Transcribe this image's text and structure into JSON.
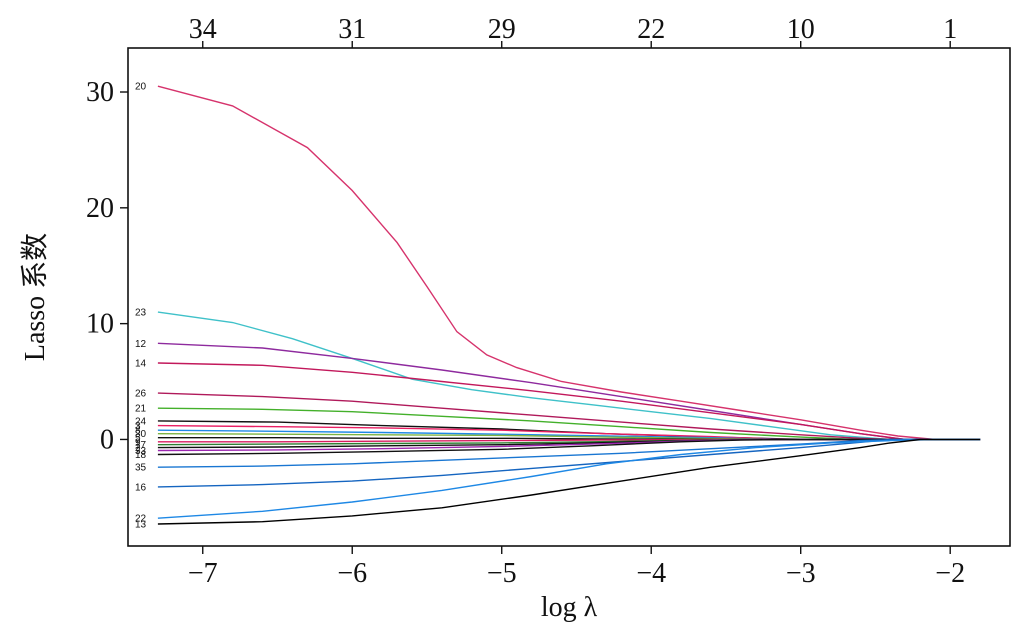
{
  "chart_data": {
    "type": "line",
    "title": "",
    "xlabel": "log λ",
    "ylabel": "Lasso 系数",
    "xlim": [
      -7.5,
      -1.6
    ],
    "ylim": [
      -9.2,
      33.8
    ],
    "x_ticks": [
      -7,
      -6,
      -5,
      -4,
      -3,
      -2
    ],
    "x_tick_labels": [
      "−7",
      "−6",
      "−5",
      "−4",
      "−3",
      "−2"
    ],
    "y_ticks": [
      0,
      10,
      20,
      30
    ],
    "y_tick_labels": [
      "0",
      "10",
      "20",
      "30"
    ],
    "top_axis": {
      "label": "",
      "ticks": [
        -7,
        -6,
        -5,
        -4,
        -3,
        -2
      ],
      "tick_labels": [
        "34",
        "31",
        "29",
        "22",
        "10",
        "1"
      ]
    },
    "grid": false,
    "series": [
      {
        "name": "20",
        "color": "#d6336c",
        "x": [
          -7.3,
          -6.8,
          -6.3,
          -6.0,
          -5.7,
          -5.5,
          -5.3,
          -5.1,
          -4.9,
          -4.6,
          -4.2,
          -3.8,
          -3.4,
          -3.0,
          -2.6,
          -2.35,
          -2.1,
          -1.8
        ],
        "values": [
          30.5,
          28.8,
          25.2,
          21.5,
          17.0,
          13.2,
          9.3,
          7.3,
          6.2,
          5.0,
          4.1,
          3.3,
          2.5,
          1.7,
          0.8,
          0.3,
          0.0,
          0.0
        ]
      },
      {
        "name": "23",
        "color": "#3fc1c9",
        "x": [
          -7.3,
          -6.8,
          -6.4,
          -6.0,
          -5.6,
          -5.2,
          -4.8,
          -4.4,
          -4.0,
          -3.6,
          -3.2,
          -2.8,
          -2.5,
          -2.4,
          -1.8
        ],
        "values": [
          11.0,
          10.1,
          8.7,
          7.0,
          5.2,
          4.3,
          3.6,
          3.0,
          2.4,
          1.8,
          1.1,
          0.4,
          0.1,
          0.0,
          0.0
        ]
      },
      {
        "name": "12",
        "color": "#8e2a9e",
        "x": [
          -7.3,
          -6.6,
          -6.0,
          -5.4,
          -4.8,
          -4.2,
          -3.6,
          -3.0,
          -2.6,
          -2.3,
          -1.8
        ],
        "values": [
          8.3,
          7.9,
          7.0,
          6.0,
          4.9,
          3.7,
          2.5,
          1.3,
          0.5,
          0.0,
          0.0
        ]
      },
      {
        "name": "14",
        "color": "#c2185b",
        "x": [
          -7.3,
          -6.6,
          -6.0,
          -5.4,
          -4.8,
          -4.2,
          -3.6,
          -3.0,
          -2.6,
          -2.3,
          -1.8
        ],
        "values": [
          6.6,
          6.4,
          5.8,
          5.0,
          4.2,
          3.3,
          2.3,
          1.3,
          0.5,
          0.0,
          0.0
        ]
      },
      {
        "name": "26",
        "color": "#b0195a",
        "x": [
          -7.3,
          -6.6,
          -6.0,
          -5.4,
          -4.8,
          -4.2,
          -3.6,
          -3.0,
          -2.6,
          -2.4,
          -1.8
        ],
        "values": [
          4.0,
          3.7,
          3.3,
          2.7,
          2.1,
          1.5,
          0.9,
          0.4,
          0.1,
          0.0,
          0.0
        ]
      },
      {
        "name": "21",
        "color": "#43b02a",
        "x": [
          -7.3,
          -6.6,
          -6.0,
          -5.4,
          -4.8,
          -4.2,
          -3.6,
          -3.0,
          -2.7,
          -2.5,
          -1.8
        ],
        "values": [
          2.7,
          2.6,
          2.4,
          2.0,
          1.6,
          1.1,
          0.6,
          0.2,
          0.05,
          0.0,
          0.0
        ]
      },
      {
        "name": "24",
        "color": "#111111",
        "x": [
          -7.3,
          -6.5,
          -5.8,
          -5.0,
          -4.3,
          -3.6,
          -3.1,
          -2.9,
          -1.8
        ],
        "values": [
          1.6,
          1.5,
          1.2,
          0.9,
          0.5,
          0.2,
          0.05,
          0.0,
          0.0
        ]
      },
      {
        "name": "3",
        "color": "#e91e63",
        "x": [
          -7.3,
          -6.5,
          -5.8,
          -5.0,
          -4.3,
          -3.6,
          -3.2,
          -2.95,
          -1.8
        ],
        "values": [
          1.2,
          1.1,
          1.0,
          0.8,
          0.5,
          0.25,
          0.05,
          0.0,
          0.0
        ]
      },
      {
        "name": "8",
        "color": "#1e88e5",
        "x": [
          -7.3,
          -6.5,
          -5.8,
          -5.0,
          -4.3,
          -3.6,
          -3.3,
          -3.0,
          -1.8
        ],
        "values": [
          0.8,
          0.7,
          0.6,
          0.45,
          0.3,
          0.15,
          0.05,
          0.0,
          0.0
        ]
      },
      {
        "name": "30",
        "color": "#7cb342",
        "x": [
          -7.3,
          -6.5,
          -5.8,
          -5.0,
          -4.3,
          -3.7,
          -3.3,
          -3.1,
          -1.8
        ],
        "values": [
          0.5,
          0.45,
          0.4,
          0.35,
          0.2,
          0.1,
          0.03,
          0.0,
          0.0
        ]
      },
      {
        "name": "5",
        "color": "#111111",
        "x": [
          -7.3,
          -6.5,
          -5.8,
          -5.0,
          -4.4,
          -3.8,
          -3.5,
          -3.2,
          -1.8
        ],
        "values": [
          0.15,
          0.15,
          0.1,
          0.1,
          0.05,
          0.02,
          0.0,
          0.0,
          0.0
        ]
      },
      {
        "name": "9",
        "color": "#d81b60",
        "x": [
          -7.3,
          -6.5,
          -5.8,
          -5.0,
          -4.4,
          -3.8,
          -3.5,
          -3.2,
          -1.8
        ],
        "values": [
          -0.2,
          -0.2,
          -0.15,
          -0.1,
          -0.05,
          -0.02,
          0.0,
          0.0,
          0.0
        ]
      },
      {
        "name": "17",
        "color": "#2e7d32",
        "x": [
          -7.3,
          -6.5,
          -5.8,
          -5.0,
          -4.4,
          -3.8,
          -3.5,
          -3.2,
          -1.8
        ],
        "values": [
          -0.45,
          -0.4,
          -0.35,
          -0.3,
          -0.2,
          -0.08,
          -0.02,
          0.0,
          0.0
        ]
      },
      {
        "name": "2",
        "color": "#111111",
        "x": [
          -7.3,
          -6.5,
          -5.8,
          -5.0,
          -4.4,
          -3.8,
          -3.5,
          -3.2,
          -1.8
        ],
        "values": [
          -0.7,
          -0.65,
          -0.55,
          -0.45,
          -0.3,
          -0.12,
          -0.04,
          0.0,
          0.0
        ]
      },
      {
        "name": "33",
        "color": "#9c27b0",
        "x": [
          -7.3,
          -6.5,
          -5.8,
          -5.0,
          -4.4,
          -3.8,
          -3.5,
          -3.2,
          -1.8
        ],
        "values": [
          -0.95,
          -0.9,
          -0.8,
          -0.6,
          -0.4,
          -0.15,
          -0.05,
          0.0,
          0.0
        ]
      },
      {
        "name": "18",
        "color": "#111111",
        "x": [
          -7.3,
          -6.5,
          -5.8,
          -5.0,
          -4.4,
          -3.8,
          -3.4,
          -3.1,
          -1.8
        ],
        "values": [
          -1.3,
          -1.2,
          -1.05,
          -0.85,
          -0.55,
          -0.2,
          -0.05,
          0.0,
          0.0
        ]
      },
      {
        "name": "35",
        "color": "#1976d2",
        "x": [
          -7.3,
          -6.6,
          -6.0,
          -5.4,
          -4.8,
          -4.2,
          -3.6,
          -3.0,
          -2.6,
          -2.3,
          -1.8
        ],
        "values": [
          -2.4,
          -2.3,
          -2.1,
          -1.8,
          -1.5,
          -1.2,
          -0.8,
          -0.4,
          -0.1,
          0.0,
          0.0
        ]
      },
      {
        "name": "16",
        "color": "#1565c0",
        "x": [
          -7.3,
          -6.6,
          -6.0,
          -5.4,
          -4.8,
          -4.2,
          -3.6,
          -3.0,
          -2.6,
          -2.4,
          -1.8
        ],
        "values": [
          -4.1,
          -3.9,
          -3.6,
          -3.1,
          -2.5,
          -1.9,
          -1.3,
          -0.7,
          -0.25,
          0.0,
          0.0
        ]
      },
      {
        "name": "22",
        "color": "#1e88e5",
        "x": [
          -7.3,
          -6.6,
          -6.0,
          -5.4,
          -4.8,
          -4.3,
          -3.8,
          -3.3,
          -2.8,
          -2.4,
          -2.1,
          -1.8
        ],
        "values": [
          -6.8,
          -6.2,
          -5.4,
          -4.4,
          -3.2,
          -2.1,
          -1.3,
          -0.7,
          -0.3,
          -0.1,
          0.0,
          0.0
        ]
      },
      {
        "name": "13",
        "color": "#000000",
        "x": [
          -7.3,
          -6.6,
          -6.0,
          -5.4,
          -4.8,
          -4.2,
          -3.6,
          -3.0,
          -2.6,
          -2.4,
          -2.2,
          -1.8
        ],
        "values": [
          -7.3,
          -7.1,
          -6.6,
          -5.9,
          -4.8,
          -3.6,
          -2.4,
          -1.4,
          -0.7,
          -0.3,
          0.0,
          0.0
        ]
      }
    ]
  }
}
